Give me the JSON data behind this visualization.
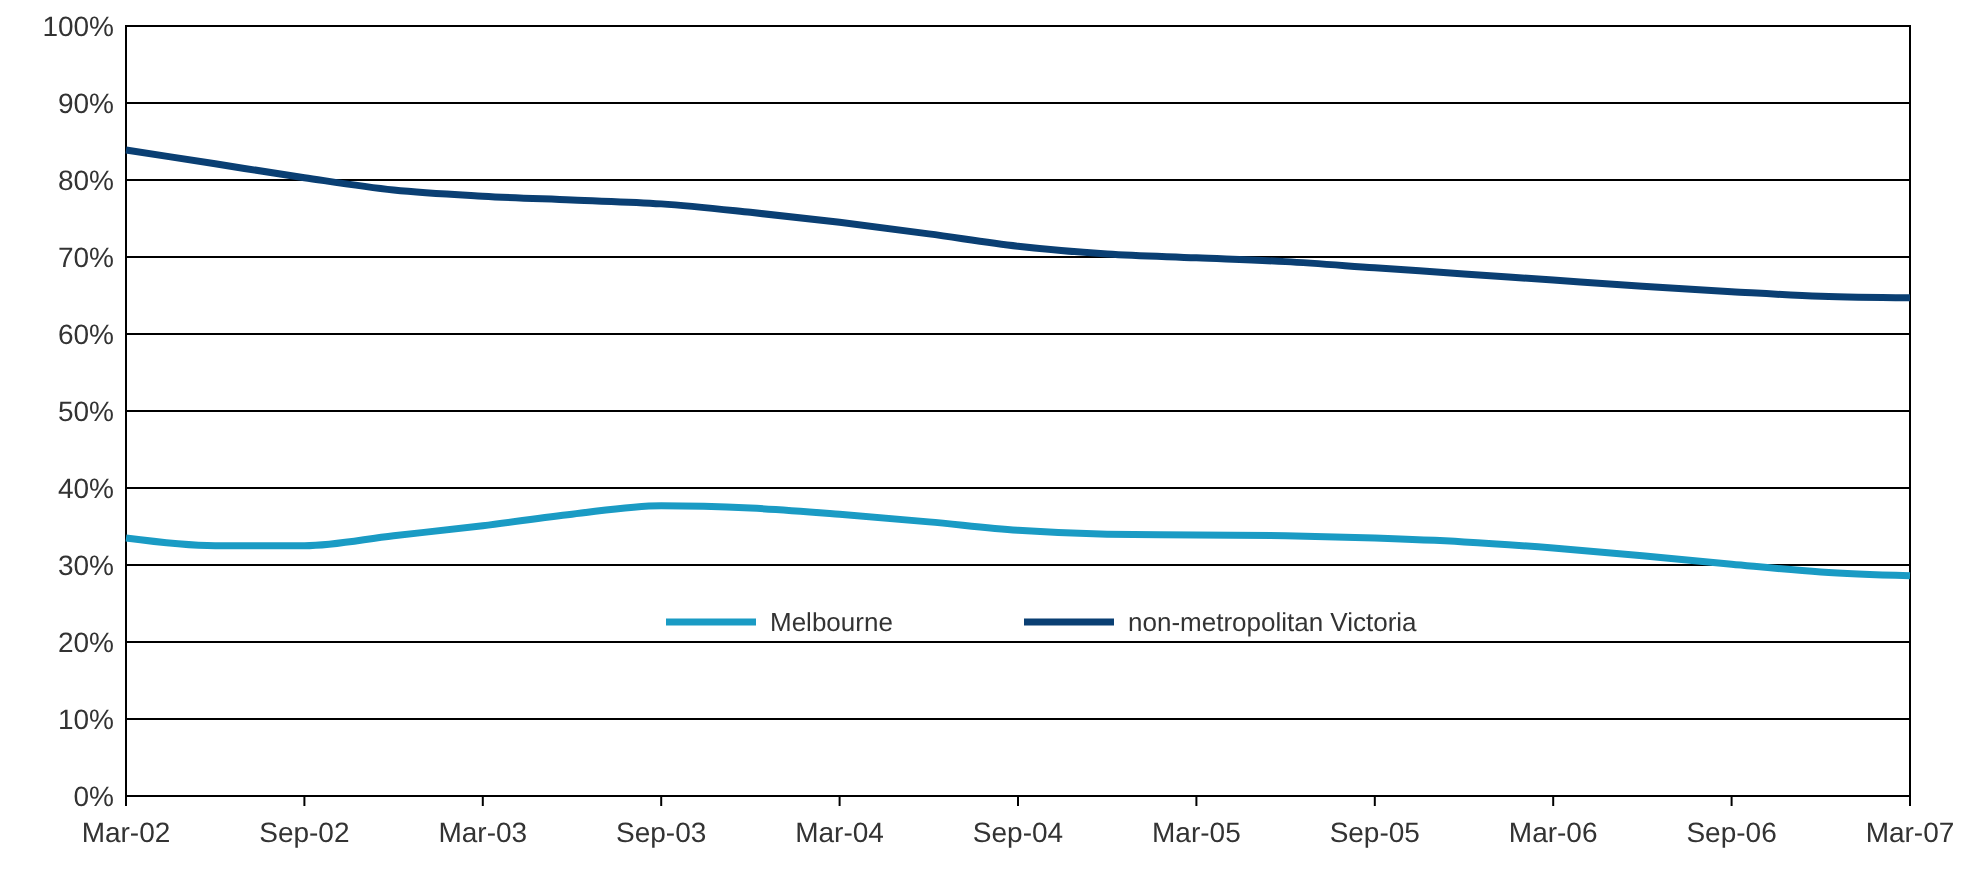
{
  "chart_data": {
    "type": "line",
    "categories": [
      "Mar-02",
      null,
      "Sep-02",
      null,
      "Mar-03",
      null,
      "Sep-03",
      null,
      "Mar-04",
      null,
      "Sep-04",
      null,
      "Mar-05",
      null,
      "Sep-05",
      null,
      "Mar-06",
      null,
      "Sep-06",
      null,
      "Mar-07"
    ],
    "series": [
      {
        "name": "Melbourne",
        "color": "#1a9bc4",
        "values": [
          33.5,
          32.5,
          32.5,
          33.8,
          35.1,
          36.6,
          37.7,
          37.4,
          36.6,
          35.6,
          34.5,
          34.0,
          33.9,
          33.8,
          33.5,
          33.0,
          32.2,
          31.2,
          30.1,
          29.1,
          28.6
        ]
      },
      {
        "name": "non-metropolitan Victoria",
        "color": "#0a3f73",
        "values": [
          83.9,
          82.1,
          80.3,
          78.7,
          77.9,
          77.4,
          76.9,
          75.8,
          74.5,
          73.0,
          71.4,
          70.4,
          69.9,
          69.4,
          68.6,
          67.8,
          67.0,
          66.2,
          65.5,
          64.9,
          64.7
        ]
      }
    ],
    "ylim": [
      0,
      100
    ],
    "yticks": [
      {
        "value": 0,
        "label": "0%"
      },
      {
        "value": 10,
        "label": "10%"
      },
      {
        "value": 20,
        "label": "20%"
      },
      {
        "value": 30,
        "label": "30%"
      },
      {
        "value": 40,
        "label": "40%"
      },
      {
        "value": 50,
        "label": "50%"
      },
      {
        "value": 60,
        "label": "60%"
      },
      {
        "value": 70,
        "label": "70%"
      },
      {
        "value": 80,
        "label": "80%"
      },
      {
        "value": 90,
        "label": "90%"
      },
      {
        "value": 100,
        "label": "100%"
      }
    ],
    "grid": "y",
    "legend": "bottom",
    "marker": "none",
    "line_style": "solid"
  }
}
